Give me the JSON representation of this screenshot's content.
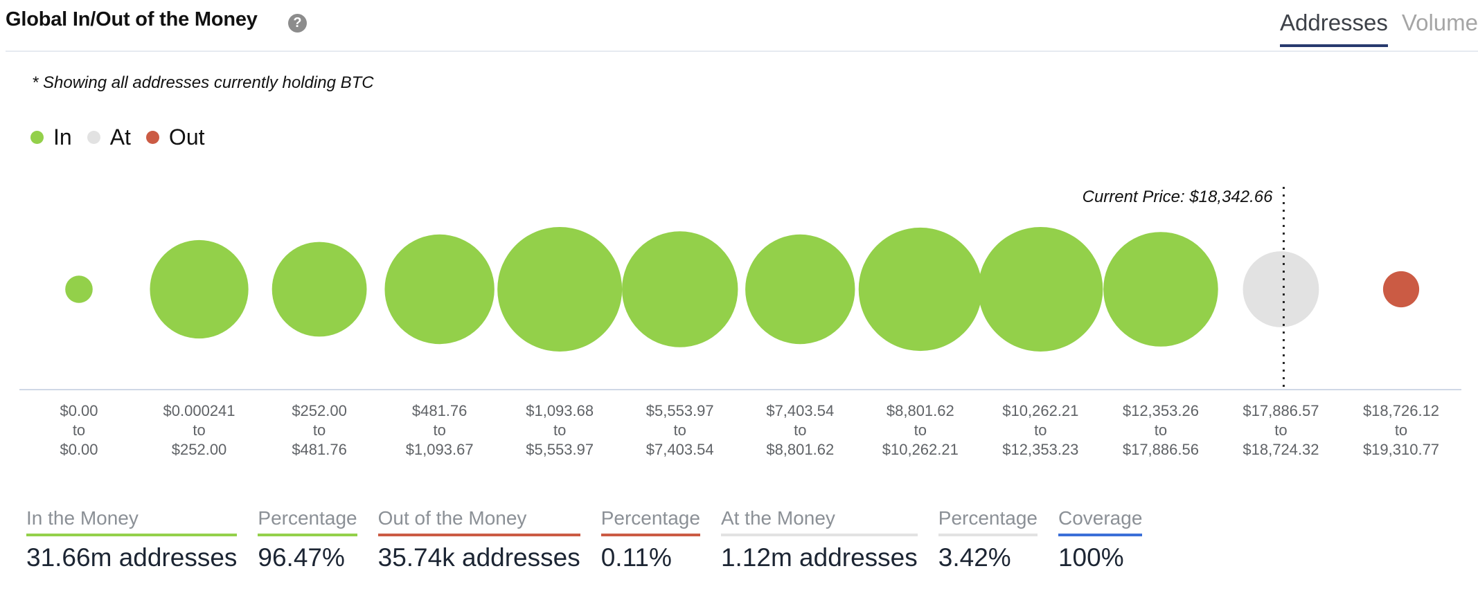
{
  "header": {
    "title": "Global In/Out of the Money",
    "help_icon": "question-circle-icon",
    "tabs": [
      {
        "label": "Addresses",
        "active": true
      },
      {
        "label": "Volume",
        "active": false
      }
    ]
  },
  "note": "* Showing all addresses currently holding BTC",
  "legend": [
    {
      "label": "In",
      "color": "#93d04a"
    },
    {
      "label": "At",
      "color": "#e2e2e2"
    },
    {
      "label": "Out",
      "color": "#cb5b44"
    }
  ],
  "colors": {
    "in": "#93d04a",
    "at": "#e2e2e2",
    "out": "#cb5b44",
    "coverage": "#3b6fd8",
    "axis": "#cfd8e6"
  },
  "chart_data": {
    "type": "bubble",
    "title": "Global In/Out of the Money",
    "current_price_label": "Current Price: $18,342.66",
    "current_price": 18342.66,
    "categories": [
      {
        "from": "$0.00",
        "to": "$0.00",
        "status": "in",
        "relative_size": 0.22
      },
      {
        "from": "$0.000241",
        "to": "$252.00",
        "status": "in",
        "relative_size": 0.79
      },
      {
        "from": "$252.00",
        "to": "$481.76",
        "status": "in",
        "relative_size": 0.76
      },
      {
        "from": "$481.76",
        "to": "$1,093.67",
        "status": "in",
        "relative_size": 0.88
      },
      {
        "from": "$1,093.68",
        "to": "$5,553.97",
        "status": "in",
        "relative_size": 1.0
      },
      {
        "from": "$5,553.97",
        "to": "$7,403.54",
        "status": "in",
        "relative_size": 0.93
      },
      {
        "from": "$7,403.54",
        "to": "$8,801.62",
        "status": "in",
        "relative_size": 0.88
      },
      {
        "from": "$8,801.62",
        "to": "$10,262.21",
        "status": "in",
        "relative_size": 0.99
      },
      {
        "from": "$10,262.21",
        "to": "$12,353.23",
        "status": "in",
        "relative_size": 1.0
      },
      {
        "from": "$12,353.26",
        "to": "$17,886.56",
        "status": "in",
        "relative_size": 0.92
      },
      {
        "from": "$17,886.57",
        "to": "$18,724.32",
        "status": "at",
        "relative_size": 0.61
      },
      {
        "from": "$18,726.12",
        "to": "$19,310.77",
        "status": "out",
        "relative_size": 0.29
      }
    ],
    "range_connector": "to",
    "legend_placement": "top-left"
  },
  "stats": [
    {
      "label": "In the Money",
      "value": "31.66m addresses",
      "color": "#93d04a"
    },
    {
      "label": "Percentage",
      "value": "96.47%",
      "color": "#93d04a"
    },
    {
      "label": "Out of the Money",
      "value": "35.74k addresses",
      "color": "#cb5b44"
    },
    {
      "label": "Percentage",
      "value": "0.11%",
      "color": "#cb5b44"
    },
    {
      "label": "At the Money",
      "value": "1.12m addresses",
      "color": "#e2e2e2"
    },
    {
      "label": "Percentage",
      "value": "3.42%",
      "color": "#e2e2e2"
    },
    {
      "label": "Coverage",
      "value": "100%",
      "color": "#3b6fd8"
    }
  ]
}
